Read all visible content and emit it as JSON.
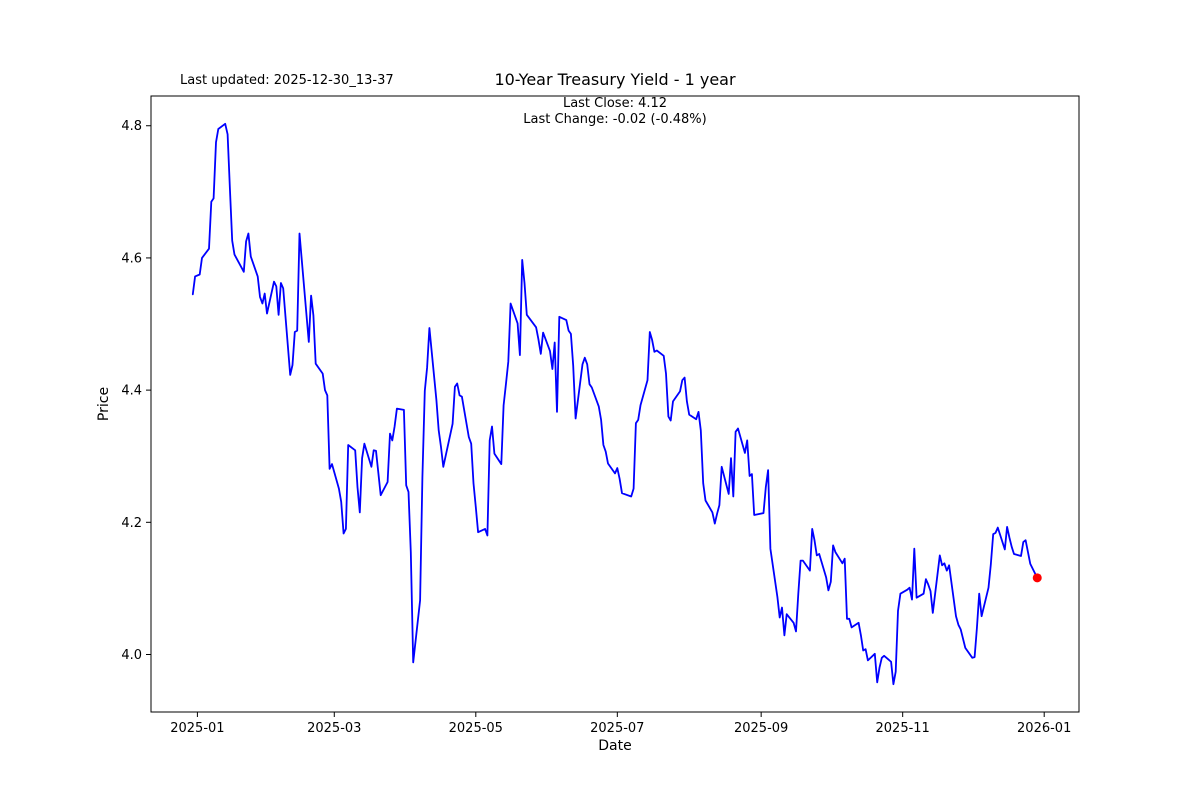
{
  "header": {
    "last_updated": "Last updated: 2025-12-30_13-37",
    "title": "10-Year Treasury Yield - 1 year",
    "subtitle_line1": "Last Close: 4.12",
    "subtitle_line2": "Last Change: -0.02 (-0.48%)"
  },
  "chart_data": {
    "type": "line",
    "title": "10-Year Treasury Yield - 1 year",
    "xlabel": "Date",
    "ylabel": "Price",
    "last_close": 4.12,
    "last_change": "-0.02 (-0.48%)",
    "grid": false,
    "legend_position": "none",
    "line_color": "#0000ff",
    "last_point_color": "#ff0000",
    "axes_edge_color": "#000000",
    "background_color": "#ffffff",
    "xlim": [
      "2024-12-12",
      "2026-01-16"
    ],
    "ylim": [
      3.913,
      4.845
    ],
    "yticks": [
      {
        "value": 4.0,
        "label": "4.0"
      },
      {
        "value": 4.2,
        "label": "4.2"
      },
      {
        "value": 4.4,
        "label": "4.4"
      },
      {
        "value": 4.6,
        "label": "4.6"
      },
      {
        "value": 4.8,
        "label": "4.8"
      }
    ],
    "xticks": [
      {
        "date": "2025-01-01",
        "label": "2025-01"
      },
      {
        "date": "2025-03-01",
        "label": "2025-03"
      },
      {
        "date": "2025-05-01",
        "label": "2025-05"
      },
      {
        "date": "2025-07-01",
        "label": "2025-07"
      },
      {
        "date": "2025-09-01",
        "label": "2025-09"
      },
      {
        "date": "2025-11-01",
        "label": "2025-11"
      },
      {
        "date": "2026-01-01",
        "label": "2026-01"
      }
    ],
    "series": [
      {
        "name": "10-Year Treasury Yield",
        "points": [
          [
            "2024-12-30",
            4.545
          ],
          [
            "2024-12-31",
            4.572
          ],
          [
            "2025-01-02",
            4.575
          ],
          [
            "2025-01-03",
            4.6
          ],
          [
            "2025-01-06",
            4.614
          ],
          [
            "2025-01-07",
            4.685
          ],
          [
            "2025-01-08",
            4.69
          ],
          [
            "2025-01-09",
            4.775
          ],
          [
            "2025-01-10",
            4.795
          ],
          [
            "2025-01-13",
            4.803
          ],
          [
            "2025-01-14",
            4.787
          ],
          [
            "2025-01-15",
            4.705
          ],
          [
            "2025-01-16",
            4.626
          ],
          [
            "2025-01-17",
            4.605
          ],
          [
            "2025-01-21",
            4.579
          ],
          [
            "2025-01-22",
            4.625
          ],
          [
            "2025-01-23",
            4.637
          ],
          [
            "2025-01-24",
            4.602
          ],
          [
            "2025-01-27",
            4.572
          ],
          [
            "2025-01-28",
            4.541
          ],
          [
            "2025-01-29",
            4.531
          ],
          [
            "2025-01-30",
            4.546
          ],
          [
            "2025-01-31",
            4.516
          ],
          [
            "2025-02-03",
            4.564
          ],
          [
            "2025-02-04",
            4.557
          ],
          [
            "2025-02-05",
            4.514
          ],
          [
            "2025-02-06",
            4.562
          ],
          [
            "2025-02-07",
            4.554
          ],
          [
            "2025-02-10",
            4.423
          ],
          [
            "2025-02-11",
            4.438
          ],
          [
            "2025-02-12",
            4.488
          ],
          [
            "2025-02-13",
            4.49
          ],
          [
            "2025-02-14",
            4.637
          ],
          [
            "2025-02-18",
            4.473
          ],
          [
            "2025-02-19",
            4.543
          ],
          [
            "2025-02-20",
            4.513
          ],
          [
            "2025-02-21",
            4.44
          ],
          [
            "2025-02-24",
            4.425
          ],
          [
            "2025-02-25",
            4.4
          ],
          [
            "2025-02-26",
            4.392
          ],
          [
            "2025-02-27",
            4.281
          ],
          [
            "2025-02-28",
            4.288
          ],
          [
            "2025-03-03",
            4.251
          ],
          [
            "2025-03-04",
            4.231
          ],
          [
            "2025-03-05",
            4.183
          ],
          [
            "2025-03-06",
            4.19
          ],
          [
            "2025-03-07",
            4.317
          ],
          [
            "2025-03-10",
            4.309
          ],
          [
            "2025-03-11",
            4.253
          ],
          [
            "2025-03-12",
            4.215
          ],
          [
            "2025-03-13",
            4.297
          ],
          [
            "2025-03-14",
            4.319
          ],
          [
            "2025-03-17",
            4.284
          ],
          [
            "2025-03-18",
            4.309
          ],
          [
            "2025-03-19",
            4.308
          ],
          [
            "2025-03-20",
            4.274
          ],
          [
            "2025-03-21",
            4.241
          ],
          [
            "2025-03-24",
            4.261
          ],
          [
            "2025-03-25",
            4.334
          ],
          [
            "2025-03-26",
            4.324
          ],
          [
            "2025-03-27",
            4.345
          ],
          [
            "2025-03-28",
            4.372
          ],
          [
            "2025-03-31",
            4.37
          ],
          [
            "2025-04-01",
            4.256
          ],
          [
            "2025-04-02",
            4.246
          ],
          [
            "2025-04-03",
            4.155
          ],
          [
            "2025-04-04",
            3.988
          ],
          [
            "2025-04-07",
            4.082
          ],
          [
            "2025-04-08",
            4.268
          ],
          [
            "2025-04-09",
            4.399
          ],
          [
            "2025-04-10",
            4.434
          ],
          [
            "2025-04-11",
            4.494
          ],
          [
            "2025-04-14",
            4.385
          ],
          [
            "2025-04-15",
            4.339
          ],
          [
            "2025-04-16",
            4.314
          ],
          [
            "2025-04-17",
            4.284
          ],
          [
            "2025-04-21",
            4.349
          ],
          [
            "2025-04-22",
            4.405
          ],
          [
            "2025-04-23",
            4.41
          ],
          [
            "2025-04-24",
            4.392
          ],
          [
            "2025-04-25",
            4.39
          ],
          [
            "2025-04-28",
            4.329
          ],
          [
            "2025-04-29",
            4.319
          ],
          [
            "2025-04-30",
            4.259
          ],
          [
            "2025-05-01",
            4.223
          ],
          [
            "2025-05-02",
            4.185
          ],
          [
            "2025-05-05",
            4.19
          ],
          [
            "2025-05-06",
            4.18
          ],
          [
            "2025-05-07",
            4.324
          ],
          [
            "2025-05-08",
            4.345
          ],
          [
            "2025-05-09",
            4.304
          ],
          [
            "2025-05-12",
            4.288
          ],
          [
            "2025-05-13",
            4.377
          ],
          [
            "2025-05-14",
            4.41
          ],
          [
            "2025-05-15",
            4.443
          ],
          [
            "2025-05-16",
            4.531
          ],
          [
            "2025-05-19",
            4.501
          ],
          [
            "2025-05-20",
            4.453
          ],
          [
            "2025-05-21",
            4.597
          ],
          [
            "2025-05-22",
            4.562
          ],
          [
            "2025-05-23",
            4.514
          ],
          [
            "2025-05-27",
            4.495
          ],
          [
            "2025-05-28",
            4.477
          ],
          [
            "2025-05-29",
            4.455
          ],
          [
            "2025-05-30",
            4.487
          ],
          [
            "2025-06-02",
            4.459
          ],
          [
            "2025-06-03",
            4.432
          ],
          [
            "2025-06-04",
            4.472
          ],
          [
            "2025-06-05",
            4.367
          ],
          [
            "2025-06-06",
            4.511
          ],
          [
            "2025-06-09",
            4.506
          ],
          [
            "2025-06-10",
            4.49
          ],
          [
            "2025-06-11",
            4.485
          ],
          [
            "2025-06-12",
            4.437
          ],
          [
            "2025-06-13",
            4.357
          ],
          [
            "2025-06-16",
            4.439
          ],
          [
            "2025-06-17",
            4.449
          ],
          [
            "2025-06-18",
            4.439
          ],
          [
            "2025-06-19",
            4.409
          ],
          [
            "2025-06-20",
            4.404
          ],
          [
            "2025-06-23",
            4.375
          ],
          [
            "2025-06-24",
            4.355
          ],
          [
            "2025-06-25",
            4.317
          ],
          [
            "2025-06-26",
            4.307
          ],
          [
            "2025-06-27",
            4.289
          ],
          [
            "2025-06-30",
            4.274
          ],
          [
            "2025-07-01",
            4.282
          ],
          [
            "2025-07-02",
            4.266
          ],
          [
            "2025-07-03",
            4.244
          ],
          [
            "2025-07-07",
            4.239
          ],
          [
            "2025-07-08",
            4.251
          ],
          [
            "2025-07-09",
            4.35
          ],
          [
            "2025-07-10",
            4.355
          ],
          [
            "2025-07-11",
            4.377
          ],
          [
            "2025-07-14",
            4.415
          ],
          [
            "2025-07-15",
            4.488
          ],
          [
            "2025-07-16",
            4.476
          ],
          [
            "2025-07-17",
            4.458
          ],
          [
            "2025-07-18",
            4.46
          ],
          [
            "2025-07-21",
            4.452
          ],
          [
            "2025-07-22",
            4.425
          ],
          [
            "2025-07-23",
            4.36
          ],
          [
            "2025-07-24",
            4.354
          ],
          [
            "2025-07-25",
            4.383
          ],
          [
            "2025-07-28",
            4.398
          ],
          [
            "2025-07-29",
            4.415
          ],
          [
            "2025-07-30",
            4.419
          ],
          [
            "2025-07-31",
            4.383
          ],
          [
            "2025-08-01",
            4.363
          ],
          [
            "2025-08-04",
            4.356
          ],
          [
            "2025-08-05",
            4.367
          ],
          [
            "2025-08-06",
            4.339
          ],
          [
            "2025-08-07",
            4.259
          ],
          [
            "2025-08-08",
            4.233
          ],
          [
            "2025-08-11",
            4.215
          ],
          [
            "2025-08-12",
            4.198
          ],
          [
            "2025-08-13",
            4.213
          ],
          [
            "2025-08-14",
            4.226
          ],
          [
            "2025-08-15",
            4.284
          ],
          [
            "2025-08-18",
            4.243
          ],
          [
            "2025-08-19",
            4.297
          ],
          [
            "2025-08-20",
            4.239
          ],
          [
            "2025-08-21",
            4.337
          ],
          [
            "2025-08-22",
            4.342
          ],
          [
            "2025-08-25",
            4.305
          ],
          [
            "2025-08-26",
            4.324
          ],
          [
            "2025-08-27",
            4.27
          ],
          [
            "2025-08-28",
            4.273
          ],
          [
            "2025-08-29",
            4.211
          ],
          [
            "2025-09-02",
            4.214
          ],
          [
            "2025-09-03",
            4.253
          ],
          [
            "2025-09-04",
            4.279
          ],
          [
            "2025-09-05",
            4.16
          ],
          [
            "2025-09-08",
            4.087
          ],
          [
            "2025-09-09",
            4.056
          ],
          [
            "2025-09-10",
            4.071
          ],
          [
            "2025-09-11",
            4.029
          ],
          [
            "2025-09-12",
            4.061
          ],
          [
            "2025-09-15",
            4.048
          ],
          [
            "2025-09-16",
            4.035
          ],
          [
            "2025-09-17",
            4.092
          ],
          [
            "2025-09-18",
            4.142
          ],
          [
            "2025-09-19",
            4.142
          ],
          [
            "2025-09-22",
            4.127
          ],
          [
            "2025-09-23",
            4.19
          ],
          [
            "2025-09-24",
            4.173
          ],
          [
            "2025-09-25",
            4.15
          ],
          [
            "2025-09-26",
            4.152
          ],
          [
            "2025-09-29",
            4.117
          ],
          [
            "2025-09-30",
            4.097
          ],
          [
            "2025-10-01",
            4.11
          ],
          [
            "2025-10-02",
            4.165
          ],
          [
            "2025-10-03",
            4.155
          ],
          [
            "2025-10-06",
            4.138
          ],
          [
            "2025-10-07",
            4.145
          ],
          [
            "2025-10-08",
            4.054
          ],
          [
            "2025-10-09",
            4.054
          ],
          [
            "2025-10-10",
            4.041
          ],
          [
            "2025-10-13",
            4.048
          ],
          [
            "2025-10-14",
            4.029
          ],
          [
            "2025-10-15",
            4.006
          ],
          [
            "2025-10-16",
            4.008
          ],
          [
            "2025-10-17",
            3.991
          ],
          [
            "2025-10-20",
            4.001
          ],
          [
            "2025-10-21",
            3.958
          ],
          [
            "2025-10-22",
            3.98
          ],
          [
            "2025-10-23",
            3.995
          ],
          [
            "2025-10-24",
            3.998
          ],
          [
            "2025-10-27",
            3.989
          ],
          [
            "2025-10-28",
            3.955
          ],
          [
            "2025-10-29",
            3.974
          ],
          [
            "2025-10-30",
            4.066
          ],
          [
            "2025-10-31",
            4.092
          ],
          [
            "2025-11-03",
            4.098
          ],
          [
            "2025-11-04",
            4.101
          ],
          [
            "2025-11-05",
            4.083
          ],
          [
            "2025-11-06",
            4.16
          ],
          [
            "2025-11-07",
            4.086
          ],
          [
            "2025-11-10",
            4.092
          ],
          [
            "2025-11-11",
            4.114
          ],
          [
            "2025-11-12",
            4.106
          ],
          [
            "2025-11-13",
            4.096
          ],
          [
            "2025-11-14",
            4.063
          ],
          [
            "2025-11-17",
            4.15
          ],
          [
            "2025-11-18",
            4.135
          ],
          [
            "2025-11-19",
            4.138
          ],
          [
            "2025-11-20",
            4.127
          ],
          [
            "2025-11-21",
            4.135
          ],
          [
            "2025-11-24",
            4.058
          ],
          [
            "2025-11-25",
            4.045
          ],
          [
            "2025-11-26",
            4.038
          ],
          [
            "2025-11-28",
            4.01
          ],
          [
            "2025-12-01",
            3.995
          ],
          [
            "2025-12-02",
            3.996
          ],
          [
            "2025-12-03",
            4.04
          ],
          [
            "2025-12-04",
            4.092
          ],
          [
            "2025-12-05",
            4.058
          ],
          [
            "2025-12-08",
            4.101
          ],
          [
            "2025-12-09",
            4.136
          ],
          [
            "2025-12-10",
            4.182
          ],
          [
            "2025-12-11",
            4.184
          ],
          [
            "2025-12-12",
            4.192
          ],
          [
            "2025-12-15",
            4.159
          ],
          [
            "2025-12-16",
            4.193
          ],
          [
            "2025-12-17",
            4.177
          ],
          [
            "2025-12-18",
            4.163
          ],
          [
            "2025-12-19",
            4.152
          ],
          [
            "2025-12-22",
            4.149
          ],
          [
            "2025-12-23",
            4.17
          ],
          [
            "2025-12-24",
            4.173
          ],
          [
            "2025-12-26",
            4.137
          ],
          [
            "2025-12-29",
            4.116
          ]
        ]
      }
    ]
  }
}
